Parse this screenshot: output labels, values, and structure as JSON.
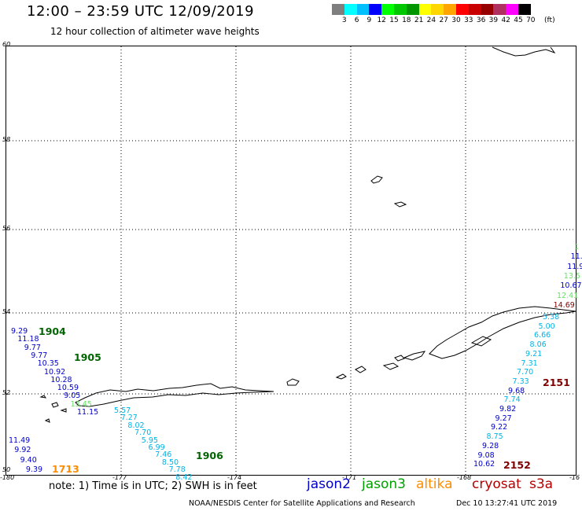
{
  "header": {
    "title": "12:00 – 23:59 UTC 12/09/2019",
    "subtitle": "12 hour collection of altimeter wave heights"
  },
  "legend": {
    "unit": "(ft)",
    "swatches": [
      {
        "label": "3",
        "color": "#7f7f7f"
      },
      {
        "label": "6",
        "color": "#00ffff"
      },
      {
        "label": "9",
        "color": "#00bfff"
      },
      {
        "label": "12",
        "color": "#0000ff"
      },
      {
        "label": "15",
        "color": "#00ff00"
      },
      {
        "label": "18",
        "color": "#00c800"
      },
      {
        "label": "21",
        "color": "#009600"
      },
      {
        "label": "24",
        "color": "#ffff00"
      },
      {
        "label": "27",
        "color": "#ffd700"
      },
      {
        "label": "30",
        "color": "#ffa500"
      },
      {
        "label": "33",
        "color": "#ff0000"
      },
      {
        "label": "36",
        "color": "#c80000"
      },
      {
        "label": "39",
        "color": "#960000"
      },
      {
        "label": "42",
        "color": "#b03060"
      },
      {
        "label": "45",
        "color": "#ff00ff"
      },
      {
        "label": "70",
        "color": "#000000"
      }
    ]
  },
  "axes": {
    "lat_labels": [
      "60",
      "58",
      "56",
      "54",
      "52",
      "50"
    ],
    "lon_labels": [
      "-180",
      "-177",
      "-174",
      "-171",
      "-168",
      "-16"
    ]
  },
  "colors": {
    "jason2": "#0000c8",
    "jason3": "#00a000",
    "altika": "#ff8c00",
    "cryosat": "#b40000",
    "s3a": "#b40000",
    "pass_jason3": "#006400",
    "light_green": "#66e066",
    "cyan": "#00b4e6",
    "dark_red": "#800000"
  },
  "labels": {
    "west_track": [
      {
        "text": "9.29",
        "c": "jason2"
      },
      {
        "text": "11.18",
        "c": "jason2"
      },
      {
        "text": "9.77",
        "c": "jason2"
      },
      {
        "text": "9.77",
        "c": "jason2"
      },
      {
        "text": "10.35",
        "c": "jason2"
      },
      {
        "text": "10.92",
        "c": "jason2"
      },
      {
        "text": "10.28",
        "c": "jason2"
      },
      {
        "text": "10.59",
        "c": "jason2"
      },
      {
        "text": "9.05",
        "c": "jason2"
      },
      {
        "text": "13.45",
        "c": "light_green"
      },
      {
        "text": "11.15",
        "c": "jason2"
      }
    ],
    "mid_track": [
      {
        "text": "5.57",
        "c": "cyan"
      },
      {
        "text": "7.27",
        "c": "cyan"
      },
      {
        "text": "8.02",
        "c": "cyan"
      },
      {
        "text": "7.70",
        "c": "cyan"
      },
      {
        "text": "5.95",
        "c": "cyan"
      },
      {
        "text": "6.99",
        "c": "cyan"
      },
      {
        "text": "7.46",
        "c": "cyan"
      },
      {
        "text": "8.50",
        "c": "cyan"
      },
      {
        "text": "7.78",
        "c": "cyan"
      },
      {
        "text": "8.42",
        "c": "cyan"
      }
    ],
    "sw_track": [
      {
        "text": "11.49",
        "c": "jason2"
      },
      {
        "text": "9.92",
        "c": "jason2"
      },
      {
        "text": "9.40",
        "c": "jason2"
      },
      {
        "text": "9.39",
        "c": "jason2"
      }
    ],
    "east_upper": [
      {
        "text": "1",
        "c": "light_green"
      },
      {
        "text": "11.",
        "c": "jason2"
      },
      {
        "text": "11.9",
        "c": "jason2"
      },
      {
        "text": "13.5",
        "c": "light_green"
      },
      {
        "text": "10.67",
        "c": "jason2"
      },
      {
        "text": "12.41",
        "c": "light_green"
      },
      {
        "text": "14.69",
        "c": "dark_red"
      }
    ],
    "east_track": [
      {
        "text": "5.38",
        "c": "cyan"
      },
      {
        "text": "5.00",
        "c": "cyan"
      },
      {
        "text": "6.66",
        "c": "cyan"
      },
      {
        "text": "8.06",
        "c": "cyan"
      },
      {
        "text": "9.21",
        "c": "cyan"
      },
      {
        "text": "7.31",
        "c": "cyan"
      },
      {
        "text": "7.70",
        "c": "cyan"
      },
      {
        "text": "7.33",
        "c": "cyan"
      },
      {
        "text": "9.68",
        "c": "jason2"
      },
      {
        "text": "7.74",
        "c": "cyan"
      },
      {
        "text": "9.82",
        "c": "jason2"
      },
      {
        "text": "9.27",
        "c": "jason2"
      },
      {
        "text": "9.22",
        "c": "jason2"
      },
      {
        "text": "8.75",
        "c": "cyan"
      },
      {
        "text": "9.28",
        "c": "jason2"
      },
      {
        "text": "9.08",
        "c": "jason2"
      },
      {
        "text": "10.62",
        "c": "jason2"
      }
    ],
    "pass_times": {
      "p1904": "1904",
      "p1905": "1905",
      "p1906": "1906",
      "p1713": "1713",
      "p2151": "2151",
      "p2152": "2152"
    }
  },
  "footer": {
    "note": "note: 1) Time is in UTC; 2) SWH is in feet",
    "satellites": {
      "jason2": "jason2",
      "jason3": "jason3",
      "altika": "altika",
      "cryosat": "cryosat",
      "s3a": "s3a"
    },
    "credit": "NOAA/NESDIS Center for Satellite Applications and Research",
    "timestamp": "Dec 10 13:27:41 UTC 2019"
  }
}
